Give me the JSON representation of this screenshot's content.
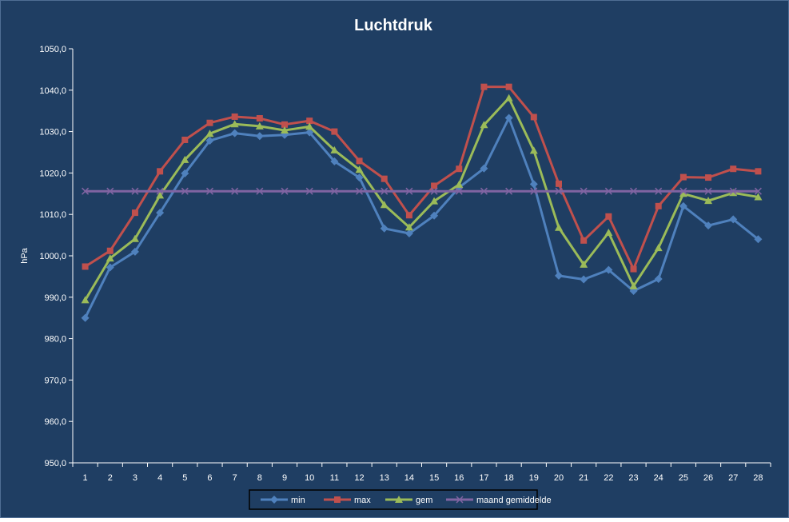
{
  "chart_data": {
    "type": "line",
    "title": "Luchtdruk",
    "xlabel": "",
    "ylabel": "hPa",
    "ylim": [
      950,
      1050
    ],
    "ytick_step": 10,
    "yticks": [
      "950,0",
      "960,0",
      "970,0",
      "980,0",
      "990,0",
      "1000,0",
      "1010,0",
      "1020,0",
      "1030,0",
      "1040,0",
      "1050,0"
    ],
    "grid": false,
    "legend_position": "bottom-center",
    "categories": [
      "1",
      "2",
      "3",
      "4",
      "5",
      "6",
      "7",
      "8",
      "9",
      "10",
      "11",
      "12",
      "13",
      "14",
      "15",
      "16",
      "17",
      "18",
      "19",
      "20",
      "21",
      "22",
      "23",
      "24",
      "25",
      "26",
      "27",
      "28"
    ],
    "series": [
      {
        "name": "min",
        "color": "#4F81BD",
        "marker": "diamond",
        "values": [
          985.0,
          997.2,
          1001.0,
          1010.4,
          1019.9,
          1027.8,
          1029.6,
          1028.9,
          1029.2,
          1029.8,
          1022.8,
          1018.9,
          1006.6,
          1005.4,
          1009.7,
          1016.5,
          1021.1,
          1033.3,
          1017.3,
          995.2,
          994.3,
          996.6,
          991.5,
          994.4,
          1012.0,
          1007.3,
          1008.8,
          1004.0
        ]
      },
      {
        "name": "max",
        "color": "#C0504D",
        "marker": "square",
        "values": [
          997.4,
          1001.2,
          1010.4,
          1020.4,
          1028.0,
          1032.1,
          1033.6,
          1033.2,
          1031.7,
          1032.6,
          1030.0,
          1022.9,
          1018.6,
          1009.8,
          1016.9,
          1021.0,
          1040.8,
          1040.8,
          1033.5,
          1017.4,
          1003.7,
          1009.5,
          996.8,
          1012.0,
          1019.0,
          1018.9,
          1021.0,
          1020.4
        ]
      },
      {
        "name": "gem",
        "color": "#9BBB59",
        "marker": "triangle",
        "values": [
          989.3,
          999.4,
          1004.1,
          1014.6,
          1023.2,
          1029.5,
          1031.8,
          1031.3,
          1030.3,
          1031.2,
          1025.5,
          1020.8,
          1012.3,
          1006.9,
          1013.2,
          1017.2,
          1031.6,
          1038.1,
          1025.4,
          1006.8,
          997.9,
          1005.6,
          992.7,
          1001.9,
          1015.0,
          1013.3,
          1015.2,
          1014.2
        ]
      },
      {
        "name": "maand gemiddelde",
        "color": "#8064A2",
        "marker": "x",
        "values": [
          1015.6,
          1015.6,
          1015.6,
          1015.6,
          1015.6,
          1015.6,
          1015.6,
          1015.6,
          1015.6,
          1015.6,
          1015.6,
          1015.6,
          1015.6,
          1015.6,
          1015.6,
          1015.6,
          1015.6,
          1015.6,
          1015.6,
          1015.6,
          1015.6,
          1015.6,
          1015.6,
          1015.6,
          1015.6,
          1015.6,
          1015.6,
          1015.6
        ]
      }
    ],
    "colors": {
      "background": "#1F3E63",
      "border": "#4F6E94",
      "axis": "#FFFFFF",
      "text": "#FFFFFF",
      "legend_background": "#1F3E63",
      "legend_text": "#FFFFFF"
    }
  }
}
